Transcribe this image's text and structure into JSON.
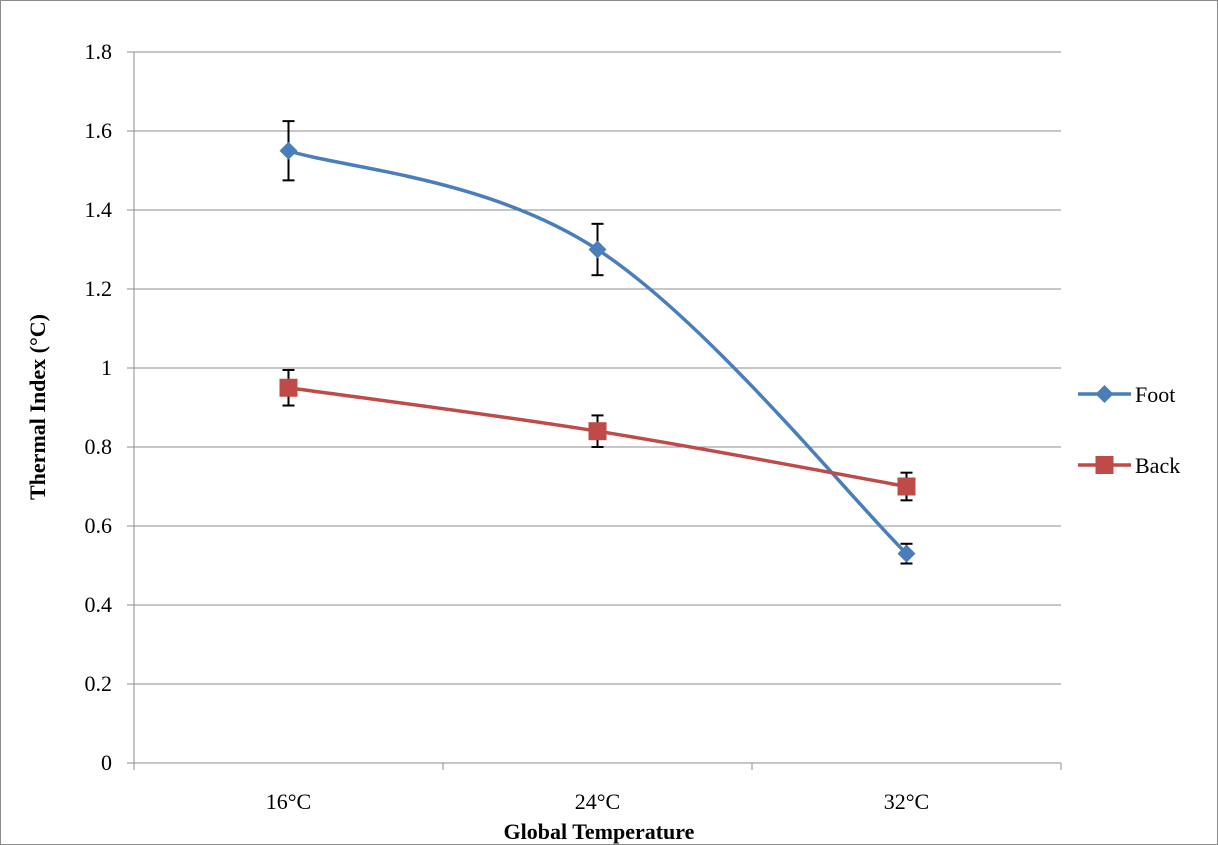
{
  "chart_data": {
    "type": "line",
    "title": "",
    "xlabel": "Global Temperature",
    "ylabel": "Thermal Index (°C)",
    "categories": [
      "16°C",
      "24°C",
      "32°C"
    ],
    "ylim": [
      0,
      1.8
    ],
    "yticks": [
      "0",
      "0.2",
      "0.4",
      "0.6",
      "0.8",
      "1",
      "1.2",
      "1.4",
      "1.6",
      "1.8"
    ],
    "ytick_values": [
      0,
      0.2,
      0.4,
      0.6,
      0.8,
      1.0,
      1.2,
      1.4,
      1.6,
      1.8
    ],
    "grid": true,
    "legend_position": "right",
    "series": [
      {
        "name": "Foot",
        "values": [
          1.55,
          1.3,
          0.53
        ],
        "errors": [
          0.075,
          0.065,
          0.025
        ],
        "color": "#4a7ebb",
        "marker": "diamond"
      },
      {
        "name": "Back",
        "values": [
          0.95,
          0.84,
          0.7
        ],
        "errors": [
          0.045,
          0.04,
          0.035
        ],
        "color": "#be4b48",
        "marker": "square"
      }
    ]
  }
}
